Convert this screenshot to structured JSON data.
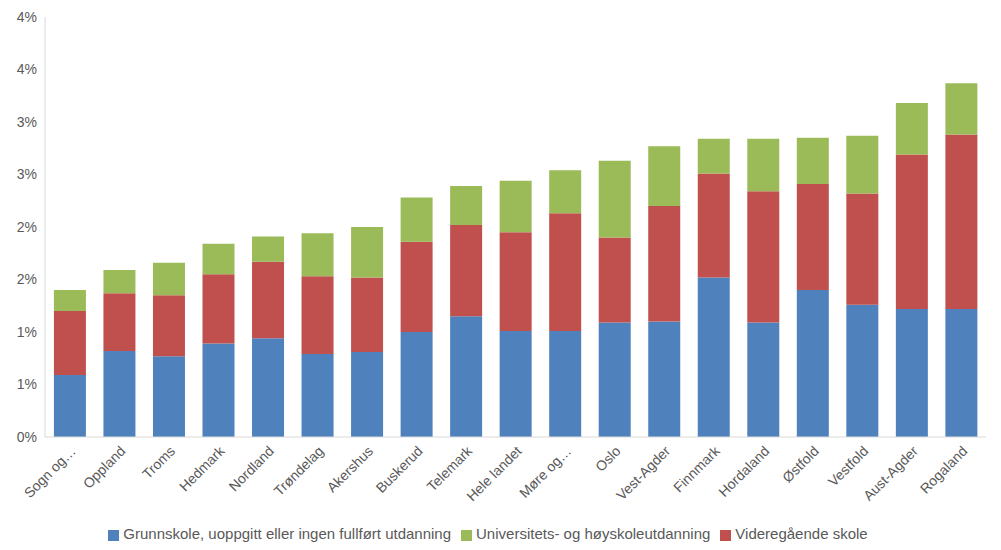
{
  "chart_data": {
    "type": "bar",
    "stacked": true,
    "grid": false,
    "legend": "bottom",
    "categories": [
      "Sogn og…",
      "Oppland",
      "Troms",
      "Hedmark",
      "Nordland",
      "Trøndelag",
      "Akershus",
      "Buskerud",
      "Telemark",
      "Hele landet",
      "Møre og…",
      "Oslo",
      "Vest-Agder",
      "Finnmark",
      "Hordaland",
      "Østfold",
      "Vestfold",
      "Aust-Agder",
      "Rogaland"
    ],
    "series": [
      {
        "name": "Grunnskole, uoppgitt eller ingen fullført utdanning",
        "color": "#4f81bd",
        "values": [
          0.59,
          0.82,
          0.77,
          0.89,
          0.94,
          0.79,
          0.81,
          1.0,
          1.15,
          1.01,
          1.01,
          1.09,
          1.1,
          1.52,
          1.09,
          1.4,
          1.26,
          1.22,
          1.22
        ]
      },
      {
        "name": "Videregående skole",
        "color": "#c0504d",
        "values": [
          0.61,
          0.55,
          0.58,
          0.66,
          0.73,
          0.74,
          0.71,
          0.86,
          0.87,
          0.94,
          1.12,
          0.81,
          1.1,
          0.99,
          1.25,
          1.01,
          1.06,
          1.47,
          1.66
        ]
      },
      {
        "name": "Universitets- og høyskoleutdanning",
        "color": "#9bbb59",
        "values": [
          0.2,
          0.22,
          0.31,
          0.29,
          0.24,
          0.41,
          0.48,
          0.42,
          0.37,
          0.49,
          0.41,
          0.73,
          0.57,
          0.33,
          0.5,
          0.44,
          0.55,
          0.49,
          0.49
        ]
      }
    ],
    "ylim": [
      0,
      4
    ],
    "yticks": [
      {
        "value": 0,
        "label": "0%"
      },
      {
        "value": 0.5,
        "label": "1%"
      },
      {
        "value": 1,
        "label": "1%"
      },
      {
        "value": 1.5,
        "label": "2%"
      },
      {
        "value": 2,
        "label": "2%"
      },
      {
        "value": 2.5,
        "label": "3%"
      },
      {
        "value": 3,
        "label": "3%"
      },
      {
        "value": 3.5,
        "label": "4%"
      },
      {
        "value": 4,
        "label": "4%"
      }
    ]
  }
}
